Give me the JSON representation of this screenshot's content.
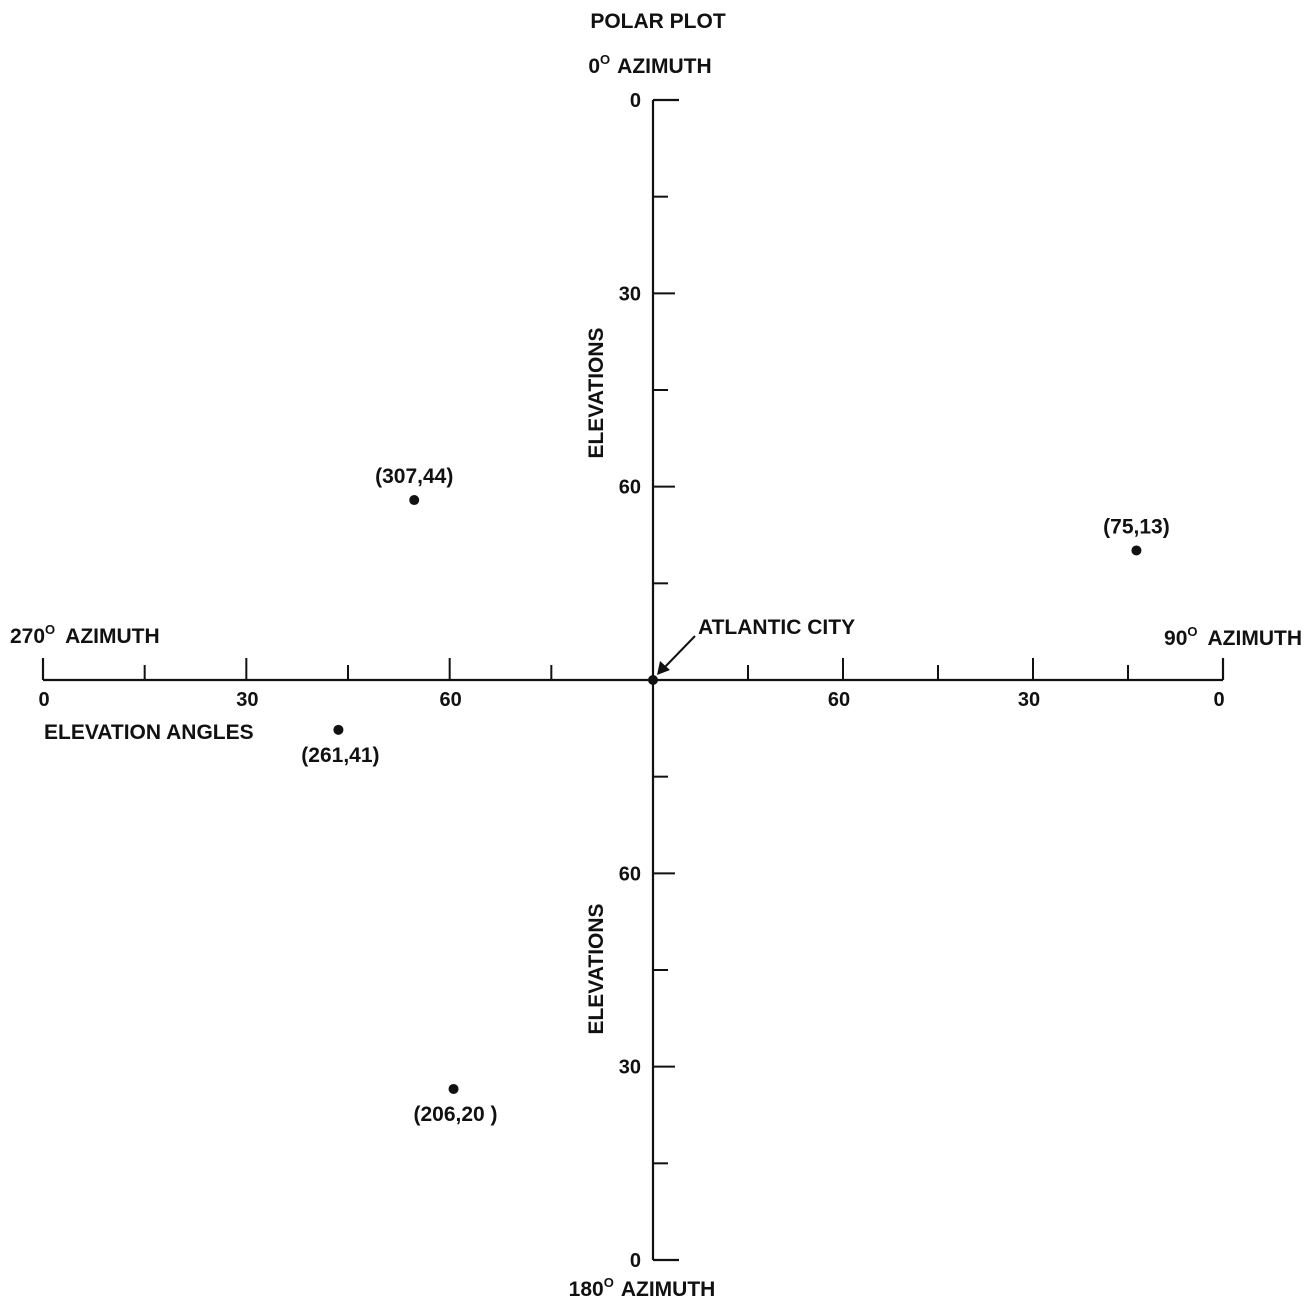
{
  "chart_data": {
    "type": "scatter",
    "title": "POLAR PLOT",
    "projection": "polar",
    "radial_quantity": "elevation angle (90 at center, 0 at outer edge)",
    "directions": {
      "top": "0° AZIMUTH",
      "right": "90° AZIMUTH",
      "bottom": "180° AZIMUTH",
      "left": "270° AZIMUTH"
    },
    "direction_labels": {
      "top": {
        "num": "0",
        "deg": "O",
        "word": "AZIMUTH"
      },
      "right": {
        "num": "90",
        "deg": "O",
        "word": "AZIMUTH"
      },
      "bottom": {
        "num": "180",
        "deg": "O",
        "word": "AZIMUTH"
      },
      "left": {
        "num": "270",
        "deg": "O",
        "word": "AZIMUTH"
      }
    },
    "vertical_axis_label": "ELEVATIONS",
    "horizontal_axis_label": "ELEVATION ANGLES",
    "tick_labels": [
      "0",
      "30",
      "60"
    ],
    "center_label": "ATLANTIC CITY",
    "points": [
      {
        "azimuth": 307,
        "elevation": 44,
        "label": "(307,44)"
      },
      {
        "azimuth": 75,
        "elevation": 13,
        "label": "(75,13)"
      },
      {
        "azimuth": 261,
        "elevation": 41,
        "label": "(261,41)"
      },
      {
        "azimuth": 206,
        "elevation": 20,
        "label": "(206,20 )"
      }
    ]
  }
}
